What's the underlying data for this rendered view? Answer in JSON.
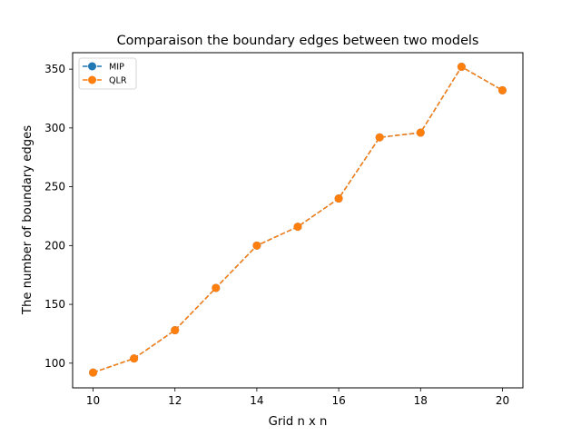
{
  "chart_data": {
    "type": "line",
    "title": "Comparaison the boundary edges between two models",
    "xlabel": "Grid n x n",
    "ylabel": "The number of boundary edges",
    "x": [
      10,
      11,
      12,
      13,
      14,
      15,
      16,
      17,
      18,
      19,
      20
    ],
    "xlim": [
      9.5,
      20.5
    ],
    "ylim": [
      79,
      364
    ],
    "xticks": [
      10,
      12,
      14,
      16,
      18,
      20
    ],
    "yticks": [
      100,
      150,
      200,
      250,
      300,
      350
    ],
    "grid": false,
    "legend_position": "upper left",
    "series": [
      {
        "name": "MIP",
        "color": "#1f77b4",
        "marker": "circle",
        "linestyle": "dashed",
        "values": [
          92,
          104,
          128,
          164,
          200,
          216,
          240,
          292,
          296,
          352,
          332
        ]
      },
      {
        "name": "QLR",
        "color": "#ff7f0e",
        "marker": "circle",
        "linestyle": "dashed",
        "values": [
          92,
          104,
          128,
          164,
          200,
          216,
          240,
          292,
          296,
          352,
          332
        ]
      }
    ]
  }
}
